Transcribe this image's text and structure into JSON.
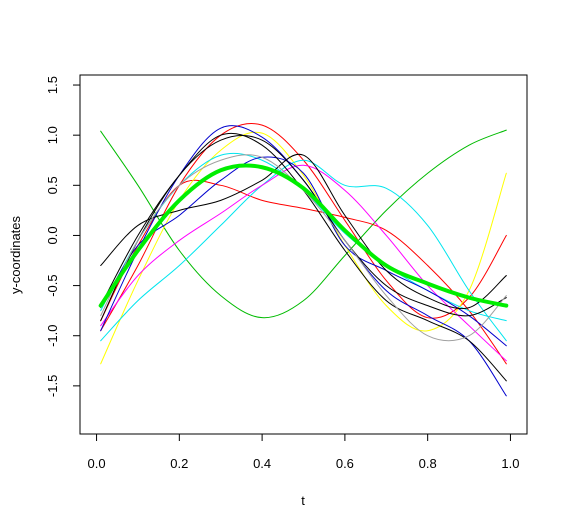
{
  "chart_data": {
    "type": "line",
    "title": "",
    "xlabel": "t",
    "ylabel": "y-coordinates",
    "xlim": [
      -0.04,
      1.04
    ],
    "ylim": [
      -1.98,
      1.6
    ],
    "x_ticks": [
      0.0,
      0.2,
      0.4,
      0.6,
      0.8,
      1.0
    ],
    "x_tick_labels": [
      "0.0",
      "0.2",
      "0.4",
      "0.6",
      "0.8",
      "1.0"
    ],
    "y_ticks": [
      -1.5,
      -1.0,
      -0.5,
      0.0,
      0.5,
      1.0,
      1.5
    ],
    "y_tick_labels": [
      "-1.5",
      "-1.0",
      "-0.5",
      "0.0",
      "0.5",
      "1.0",
      "1.5"
    ],
    "grid": false,
    "legend": "none",
    "x": [
      0.01,
      0.1,
      0.2,
      0.3,
      0.4,
      0.5,
      0.6,
      0.7,
      0.8,
      0.9,
      0.99
    ],
    "series": [
      {
        "color": "#00bb00",
        "width": 1,
        "values": [
          1.04,
          0.5,
          -0.15,
          -0.6,
          -0.82,
          -0.65,
          -0.2,
          0.25,
          0.62,
          0.9,
          1.05
        ]
      },
      {
        "color": "#ff0000",
        "width": 1,
        "values": [
          -0.95,
          -0.3,
          0.5,
          1.0,
          1.1,
          0.75,
          0.15,
          -0.45,
          -0.82,
          -0.62,
          0.0
        ]
      },
      {
        "color": "#ff0000",
        "width": 1,
        "values": [
          -0.85,
          -0.1,
          0.5,
          0.5,
          0.35,
          0.27,
          0.18,
          0.05,
          -0.3,
          -0.75,
          -1.28
        ]
      },
      {
        "color": "#ffff00",
        "width": 1,
        "values": [
          -1.28,
          -0.45,
          0.35,
          0.85,
          1.02,
          0.6,
          -0.1,
          -0.7,
          -0.95,
          -0.55,
          0.62
        ]
      },
      {
        "color": "#00e5ee",
        "width": 1,
        "values": [
          -1.05,
          -0.65,
          -0.3,
          0.1,
          0.5,
          0.75,
          0.5,
          0.47,
          0.1,
          -0.55,
          -1.05
        ]
      },
      {
        "color": "#00e5ee",
        "width": 1,
        "values": [
          -0.75,
          -0.05,
          0.5,
          0.8,
          0.75,
          0.45,
          0.02,
          -0.3,
          -0.55,
          -0.75,
          -0.85
        ]
      },
      {
        "color": "#ff00ff",
        "width": 1,
        "values": [
          -0.9,
          -0.4,
          -0.05,
          0.22,
          0.5,
          0.7,
          0.45,
          0.0,
          -0.5,
          -0.9,
          -1.25
        ]
      },
      {
        "color": "#0000cd",
        "width": 1,
        "values": [
          -0.95,
          -0.15,
          0.6,
          1.07,
          0.98,
          0.55,
          -0.05,
          -0.55,
          -0.8,
          -1.05,
          -1.6
        ]
      },
      {
        "color": "#0000cd",
        "width": 1,
        "values": [
          -0.72,
          -0.1,
          0.2,
          0.55,
          0.78,
          0.62,
          -0.1,
          -0.35,
          -0.55,
          -0.8,
          -1.1
        ]
      },
      {
        "color": "#000000",
        "width": 1,
        "values": [
          -0.3,
          0.1,
          0.25,
          0.35,
          0.55,
          0.8,
          0.2,
          -0.35,
          -0.62,
          -0.72,
          -0.4
        ]
      },
      {
        "color": "#000000",
        "width": 1,
        "values": [
          -0.85,
          -0.05,
          0.6,
          0.95,
          0.95,
          0.55,
          -0.05,
          -0.5,
          -0.7,
          -0.8,
          -0.62
        ]
      },
      {
        "color": "#000000",
        "width": 1,
        "values": [
          -0.7,
          0.0,
          0.6,
          1.0,
          0.9,
          0.45,
          -0.15,
          -0.65,
          -0.85,
          -1.05,
          -1.45
        ]
      },
      {
        "color": "#a0a0a0",
        "width": 1,
        "values": [
          -0.8,
          -0.05,
          0.5,
          0.75,
          0.78,
          0.45,
          -0.05,
          -0.6,
          -1.0,
          -1.0,
          -0.6
        ]
      },
      {
        "color": "#00ee00",
        "width": 4,
        "values": [
          -0.7,
          -0.15,
          0.35,
          0.65,
          0.68,
          0.47,
          0.05,
          -0.3,
          -0.48,
          -0.62,
          -0.7
        ]
      }
    ]
  }
}
